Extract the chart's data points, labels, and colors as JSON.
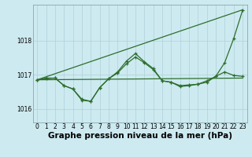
{
  "background_color": "#cdeaf0",
  "grid_color": "#b0d0d8",
  "line_color": "#2d6e2d",
  "xlabel": "Graphe pression niveau de la mer (hPa)",
  "xlabel_fontsize": 7.5,
  "xlim": [
    -0.5,
    23.5
  ],
  "ylim": [
    1015.6,
    1019.05
  ],
  "yticks": [
    1016,
    1017,
    1018
  ],
  "xticks": [
    0,
    1,
    2,
    3,
    4,
    5,
    6,
    7,
    8,
    9,
    10,
    11,
    12,
    13,
    14,
    15,
    16,
    17,
    18,
    19,
    20,
    21,
    22,
    23
  ],
  "tick_fontsize": 5.5,
  "line_diag": {
    "x": [
      0,
      23
    ],
    "y": [
      1016.85,
      1018.9
    ]
  },
  "line_flat": {
    "x": [
      0,
      23
    ],
    "y": [
      1016.85,
      1016.9
    ]
  },
  "line_main": {
    "x": [
      0,
      1,
      2,
      3,
      4,
      5,
      6,
      7,
      8,
      9,
      10,
      11,
      12,
      13,
      14,
      15,
      16,
      17,
      18,
      19,
      20,
      21,
      22,
      23
    ],
    "y": [
      1016.85,
      1016.9,
      1016.9,
      1016.68,
      1016.58,
      1016.25,
      1016.22,
      1016.62,
      1016.88,
      1017.08,
      1017.4,
      1017.62,
      1017.38,
      1017.18,
      1016.82,
      1016.78,
      1016.65,
      1016.68,
      1016.72,
      1016.78,
      1016.95,
      1017.35,
      1018.05,
      1018.88
    ]
  },
  "line_secondary": {
    "x": [
      0,
      1,
      2,
      3,
      4,
      5,
      6,
      7,
      8,
      9,
      10,
      11,
      12,
      13,
      14,
      15,
      16,
      17,
      18,
      19,
      20,
      21,
      22,
      23
    ],
    "y": [
      1016.85,
      1016.88,
      1016.9,
      1016.68,
      1016.58,
      1016.28,
      1016.22,
      1016.62,
      1016.88,
      1017.05,
      1017.32,
      1017.52,
      1017.35,
      1017.15,
      1016.82,
      1016.78,
      1016.68,
      1016.7,
      1016.72,
      1016.82,
      1016.95,
      1017.08,
      1016.98,
      1016.95
    ]
  }
}
